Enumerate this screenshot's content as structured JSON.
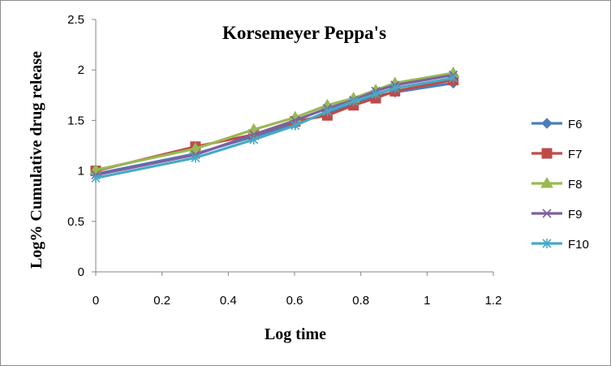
{
  "chart_data": {
    "type": "line",
    "title": "Korsemeyer Peppa's",
    "xlabel": "Log time",
    "ylabel": "Log% Cumulative drug release",
    "xlim": [
      0,
      1.2
    ],
    "ylim": [
      0,
      2.5
    ],
    "xticks": [
      "0",
      "0.2",
      "0.4",
      "0.6",
      "0.8",
      "1",
      "1.2"
    ],
    "yticks": [
      "0",
      "0.5",
      "1",
      "1.5",
      "2",
      "2.5"
    ],
    "grid": false,
    "legend_position": "right",
    "series": [
      {
        "name": "F6",
        "color": "#4a7ebb",
        "marker": "diamond",
        "x": [
          0,
          0.301,
          0.477,
          0.602,
          0.699,
          0.778,
          0.845,
          0.903,
          1.079
        ],
        "y": [
          0.97,
          1.17,
          1.34,
          1.47,
          1.57,
          1.66,
          1.74,
          1.78,
          1.87
        ]
      },
      {
        "name": "F7",
        "color": "#be4b48",
        "marker": "square",
        "x": [
          0,
          0.301,
          0.477,
          0.602,
          0.699,
          0.778,
          0.845,
          0.903,
          1.079
        ],
        "y": [
          1.0,
          1.24,
          1.36,
          1.49,
          1.55,
          1.65,
          1.72,
          1.79,
          1.9
        ]
      },
      {
        "name": "F8",
        "color": "#98b954",
        "marker": "triangle",
        "x": [
          0,
          0.301,
          0.477,
          0.602,
          0.699,
          0.778,
          0.845,
          0.903,
          1.079
        ],
        "y": [
          1.01,
          1.22,
          1.41,
          1.53,
          1.65,
          1.72,
          1.8,
          1.87,
          1.97
        ]
      },
      {
        "name": "F9",
        "color": "#7d60a0",
        "marker": "x",
        "x": [
          0,
          0.301,
          0.477,
          0.602,
          0.699,
          0.778,
          0.845,
          0.903,
          1.079
        ],
        "y": [
          0.96,
          1.16,
          1.36,
          1.5,
          1.62,
          1.7,
          1.79,
          1.85,
          1.95
        ]
      },
      {
        "name": "F10",
        "color": "#46aac5",
        "marker": "star",
        "x": [
          0,
          0.301,
          0.477,
          0.602,
          0.699,
          0.778,
          0.845,
          0.903,
          1.079
        ],
        "y": [
          0.93,
          1.13,
          1.31,
          1.45,
          1.59,
          1.69,
          1.76,
          1.82,
          1.92
        ]
      }
    ]
  }
}
